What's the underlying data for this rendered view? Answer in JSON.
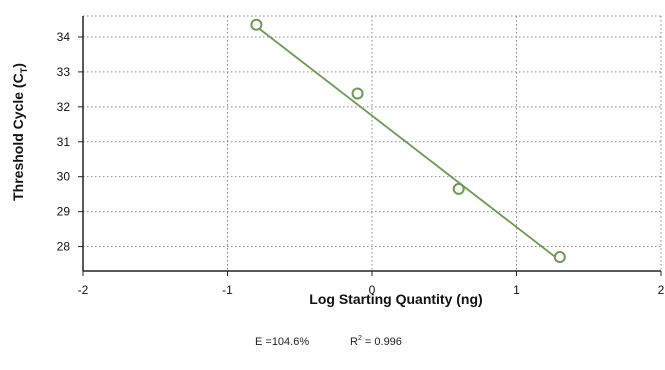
{
  "chart_data": {
    "type": "scatter",
    "xlabel": "Log Starting Quantity (ng)",
    "ylabel_main": "Threshold Cycle (C",
    "ylabel_sub": "T",
    "ylabel_close": ")",
    "xlim": [
      -2,
      2
    ],
    "ylim": [
      27.3,
      34.6
    ],
    "x_ticks": [
      -2,
      -1,
      0,
      1,
      2
    ],
    "y_ticks": [
      28,
      29,
      30,
      31,
      32,
      33,
      34
    ],
    "grid": true,
    "colors": {
      "series": "#6b9a55",
      "axis": "#222222",
      "grid": "#888888"
    },
    "series": [
      {
        "points": [
          {
            "x": -0.8,
            "y": 34.35
          },
          {
            "x": -0.1,
            "y": 32.38
          },
          {
            "x": 0.6,
            "y": 29.65
          },
          {
            "x": 1.3,
            "y": 27.7
          }
        ]
      }
    ],
    "fit_line": {
      "x": [
        -0.8,
        1.3
      ],
      "y": [
        34.3,
        27.6
      ]
    },
    "stats": {
      "efficiency_label": "E =104.6%",
      "r2_prefix": "R",
      "r2_sup": "2",
      "r2_value": " = 0.996"
    }
  }
}
